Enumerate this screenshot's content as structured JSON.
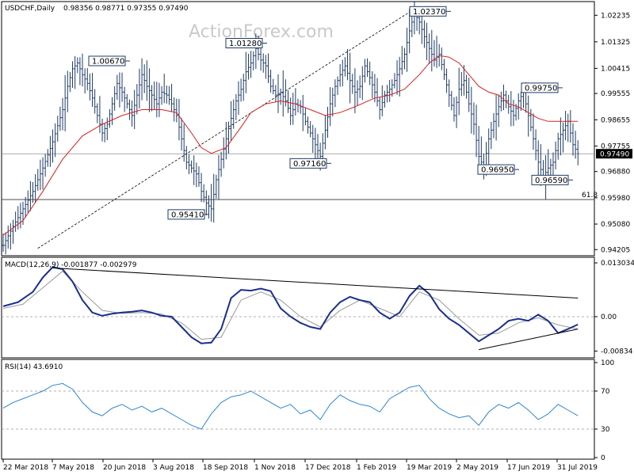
{
  "chart_data": {
    "type": "line",
    "title": "USDCHF,Daily",
    "ohlc_text": "0.98356 0.98771 0.97355 0.97490",
    "watermark": "ActionForex.com",
    "x_tick_labels": [
      "22 Mar 2018",
      "7 May 2018",
      "20 Jun 2018",
      "3 Aug 2018",
      "18 Sep 2018",
      "1 Nov 2018",
      "17 Dec 2018",
      "1 Feb 2019",
      "19 Mar 2019",
      "2 May 2019",
      "17 Jun 2019",
      "31 Jul 2019"
    ],
    "price_panel": {
      "y_ticks": [
        "1.02235",
        "1.01325",
        "1.00415",
        "0.99555",
        "0.98655",
        "0.97755",
        "0.96880",
        "0.95980",
        "0.95080",
        "0.94205"
      ],
      "ylim": [
        0.9405,
        1.0265
      ],
      "current_price_label": "0.97490",
      "current_price": 0.9749,
      "fib_level": 0.9592,
      "fib_label": "61.8",
      "annotations": [
        {
          "text": "1.00670",
          "price": 1.0067
        },
        {
          "text": "1.01280",
          "price": 1.0128
        },
        {
          "text": "1.02370",
          "price": 1.0237
        },
        {
          "text": "0.95410",
          "price": 0.9541
        },
        {
          "text": "0.97160",
          "price": 0.9716
        },
        {
          "text": "0.99750",
          "price": 0.9975
        },
        {
          "text": "0.96950",
          "price": 0.9695
        },
        {
          "text": "0.96590",
          "price": 0.9659
        }
      ],
      "price_path": [
        [
          0,
          0.9435
        ],
        [
          4,
          0.95
        ],
        [
          8,
          0.956
        ],
        [
          12,
          0.962
        ],
        [
          16,
          0.97
        ],
        [
          20,
          0.979
        ],
        [
          24,
          0.99
        ],
        [
          26,
          0.998
        ],
        [
          28,
          1.004
        ],
        [
          30,
          1.006
        ],
        [
          32,
          1.002
        ],
        [
          34,
          0.999
        ],
        [
          36,
          0.994
        ],
        [
          38,
          0.988
        ],
        [
          40,
          0.982
        ],
        [
          42,
          0.985
        ],
        [
          44,
          0.992
        ],
        [
          46,
          0.999
        ],
        [
          48,
          0.996
        ],
        [
          50,
          0.992
        ],
        [
          52,
          0.988
        ],
        [
          54,
          0.995
        ],
        [
          56,
          1.002
        ],
        [
          58,
          0.998
        ],
        [
          60,
          0.995
        ],
        [
          62,
          0.992
        ],
        [
          64,
          0.996
        ],
        [
          66,
          0.995
        ],
        [
          68,
          0.992
        ],
        [
          70,
          0.988
        ],
        [
          72,
          0.98
        ],
        [
          74,
          0.972
        ],
        [
          76,
          0.97
        ],
        [
          78,
          0.968
        ],
        [
          80,
          0.962
        ],
        [
          82,
          0.958
        ],
        [
          84,
          0.956
        ],
        [
          86,
          0.966
        ],
        [
          88,
          0.973
        ],
        [
          90,
          0.98
        ],
        [
          92,
          0.987
        ],
        [
          94,
          0.993
        ],
        [
          96,
          0.997
        ],
        [
          98,
          1.003
        ],
        [
          100,
          1.006
        ],
        [
          102,
          1.011
        ],
        [
          104,
          1.007
        ],
        [
          106,
          1.005
        ],
        [
          108,
          0.998
        ],
        [
          110,
          0.995
        ],
        [
          112,
          0.996
        ],
        [
          114,
          0.993
        ],
        [
          116,
          0.988
        ],
        [
          118,
          0.992
        ],
        [
          120,
          0.991
        ],
        [
          122,
          0.986
        ],
        [
          124,
          0.982
        ],
        [
          126,
          0.978
        ],
        [
          128,
          0.974
        ],
        [
          130,
          0.983
        ],
        [
          132,
          0.992
        ],
        [
          134,
          0.998
        ],
        [
          136,
          1.002
        ],
        [
          138,
          1.005
        ],
        [
          140,
          1.0
        ],
        [
          142,
          0.996
        ],
        [
          144,
          0.998
        ],
        [
          146,
          1.005
        ],
        [
          148,
          1.001
        ],
        [
          150,
          0.996
        ],
        [
          152,
          0.99
        ],
        [
          154,
          0.995
        ],
        [
          156,
          0.997
        ],
        [
          158,
          1.0
        ],
        [
          160,
          1.004
        ],
        [
          162,
          1.009
        ],
        [
          164,
          1.017
        ],
        [
          166,
          1.023
        ],
        [
          168,
          1.02
        ],
        [
          170,
          1.015
        ],
        [
          172,
          1.011
        ],
        [
          174,
          1.007
        ],
        [
          176,
          1.009
        ],
        [
          178,
          1.002
        ],
        [
          180,
          0.995
        ],
        [
          182,
          0.988
        ],
        [
          184,
          0.997
        ],
        [
          186,
          1.0
        ],
        [
          188,
          0.992
        ],
        [
          190,
          0.985
        ],
        [
          192,
          0.974
        ],
        [
          194,
          0.97
        ],
        [
          196,
          0.98
        ],
        [
          198,
          0.986
        ],
        [
          200,
          0.991
        ],
        [
          202,
          0.995
        ],
        [
          204,
          0.991
        ],
        [
          206,
          0.988
        ],
        [
          208,
          0.993
        ],
        [
          210,
          0.996
        ],
        [
          212,
          0.988
        ],
        [
          214,
          0.98
        ],
        [
          216,
          0.972
        ],
        [
          218,
          0.967
        ],
        [
          220,
          0.97
        ],
        [
          222,
          0.972
        ],
        [
          224,
          0.98
        ],
        [
          226,
          0.983
        ],
        [
          228,
          0.986
        ],
        [
          230,
          0.978
        ],
        [
          232,
          0.9749
        ]
      ],
      "ma_path": [
        [
          0,
          0.947
        ],
        [
          8,
          0.952
        ],
        [
          16,
          0.962
        ],
        [
          24,
          0.973
        ],
        [
          32,
          0.981
        ],
        [
          40,
          0.985
        ],
        [
          48,
          0.988
        ],
        [
          56,
          0.99
        ],
        [
          64,
          0.99
        ],
        [
          70,
          0.989
        ],
        [
          76,
          0.982
        ],
        [
          80,
          0.977
        ],
        [
          84,
          0.975
        ],
        [
          90,
          0.977
        ],
        [
          96,
          0.984
        ],
        [
          100,
          0.989
        ],
        [
          106,
          0.992
        ],
        [
          112,
          0.993
        ],
        [
          118,
          0.992
        ],
        [
          124,
          0.99
        ],
        [
          130,
          0.988
        ],
        [
          136,
          0.989
        ],
        [
          142,
          0.991
        ],
        [
          150,
          0.994
        ],
        [
          156,
          0.995
        ],
        [
          162,
          0.997
        ],
        [
          168,
          1.002
        ],
        [
          172,
          1.006
        ],
        [
          176,
          1.0085
        ],
        [
          180,
          1.008
        ],
        [
          184,
          1.006
        ],
        [
          188,
          1.002
        ],
        [
          192,
          0.998
        ],
        [
          196,
          0.996
        ],
        [
          200,
          0.995
        ],
        [
          204,
          0.992
        ],
        [
          208,
          0.991
        ],
        [
          212,
          0.989
        ],
        [
          216,
          0.987
        ],
        [
          220,
          0.986
        ],
        [
          224,
          0.986
        ],
        [
          228,
          0.986
        ],
        [
          232,
          0.986
        ]
      ],
      "trendline": [
        [
          14,
          0.9425
        ],
        [
          166,
          1.0245
        ]
      ]
    },
    "macd_panel": {
      "label": "MACD(12,26,9) -0.001877 -0.002979",
      "y_ticks": [
        "0.013034",
        "0.00",
        "-0.00834"
      ],
      "ylim": [
        -0.0096,
        0.014
      ],
      "macd_path": [
        [
          0,
          0.0025
        ],
        [
          6,
          0.0035
        ],
        [
          12,
          0.006
        ],
        [
          16,
          0.0095
        ],
        [
          20,
          0.012
        ],
        [
          24,
          0.0115
        ],
        [
          28,
          0.0085
        ],
        [
          32,
          0.004
        ],
        [
          36,
          0.001
        ],
        [
          40,
          0.0002
        ],
        [
          44,
          0.0007
        ],
        [
          48,
          0.001
        ],
        [
          52,
          0.0012
        ],
        [
          56,
          0.0015
        ],
        [
          60,
          0.001
        ],
        [
          64,
          0.0002
        ],
        [
          68,
          0.0
        ],
        [
          72,
          -0.0025
        ],
        [
          76,
          -0.005
        ],
        [
          80,
          -0.0065
        ],
        [
          84,
          -0.0063
        ],
        [
          88,
          -0.003
        ],
        [
          92,
          0.0045
        ],
        [
          96,
          0.0065
        ],
        [
          100,
          0.0063
        ],
        [
          104,
          0.0068
        ],
        [
          108,
          0.0062
        ],
        [
          112,
          0.002
        ],
        [
          116,
          0.0
        ],
        [
          120,
          -0.0015
        ],
        [
          124,
          -0.0025
        ],
        [
          128,
          -0.003
        ],
        [
          132,
          0.001
        ],
        [
          136,
          0.0035
        ],
        [
          140,
          0.0048
        ],
        [
          144,
          0.004
        ],
        [
          148,
          0.0035
        ],
        [
          152,
          0.001
        ],
        [
          156,
          -0.0005
        ],
        [
          160,
          0.001
        ],
        [
          164,
          0.005
        ],
        [
          168,
          0.0075
        ],
        [
          172,
          0.0055
        ],
        [
          176,
          0.0018
        ],
        [
          180,
          -0.0005
        ],
        [
          184,
          -0.002
        ],
        [
          188,
          -0.004
        ],
        [
          192,
          -0.006
        ],
        [
          196,
          -0.0045
        ],
        [
          200,
          -0.003
        ],
        [
          204,
          -0.001
        ],
        [
          208,
          -0.0005
        ],
        [
          212,
          -0.001
        ],
        [
          216,
          0.0005
        ],
        [
          220,
          -0.001
        ],
        [
          224,
          -0.004
        ],
        [
          228,
          -0.003
        ],
        [
          232,
          -0.0019
        ]
      ],
      "signal_path": [
        [
          0,
          0.002
        ],
        [
          8,
          0.003
        ],
        [
          16,
          0.007
        ],
        [
          24,
          0.011
        ],
        [
          32,
          0.006
        ],
        [
          40,
          0.0015
        ],
        [
          48,
          0.0008
        ],
        [
          56,
          0.001
        ],
        [
          64,
          0.0006
        ],
        [
          72,
          -0.0015
        ],
        [
          80,
          -0.0055
        ],
        [
          88,
          -0.005
        ],
        [
          96,
          0.004
        ],
        [
          104,
          0.006
        ],
        [
          112,
          0.004
        ],
        [
          120,
          0.0
        ],
        [
          128,
          -0.0025
        ],
        [
          136,
          0.0015
        ],
        [
          144,
          0.004
        ],
        [
          152,
          0.002
        ],
        [
          160,
          0.0
        ],
        [
          168,
          0.006
        ],
        [
          176,
          0.004
        ],
        [
          184,
          -0.0005
        ],
        [
          192,
          -0.0045
        ],
        [
          200,
          -0.004
        ],
        [
          208,
          -0.0015
        ],
        [
          216,
          -0.0003
        ],
        [
          224,
          -0.002
        ],
        [
          232,
          -0.003
        ]
      ],
      "trendlines": [
        [
          [
            20,
            0.0118
          ],
          [
            232,
            0.0045
          ]
        ],
        [
          [
            192,
            -0.008
          ],
          [
            232,
            -0.003
          ]
        ]
      ]
    },
    "rsi_panel": {
      "label": "RSI(14) 43.6910",
      "y_ticks": [
        "100",
        "70",
        "30",
        "0"
      ],
      "ylim": [
        0,
        100
      ],
      "levels": [
        70,
        30
      ],
      "rsi_path": [
        [
          0,
          52
        ],
        [
          4,
          58
        ],
        [
          8,
          62
        ],
        [
          12,
          66
        ],
        [
          16,
          70
        ],
        [
          20,
          76
        ],
        [
          24,
          78
        ],
        [
          28,
          72
        ],
        [
          32,
          58
        ],
        [
          36,
          48
        ],
        [
          40,
          44
        ],
        [
          44,
          52
        ],
        [
          48,
          56
        ],
        [
          52,
          50
        ],
        [
          56,
          54
        ],
        [
          60,
          48
        ],
        [
          64,
          52
        ],
        [
          68,
          46
        ],
        [
          72,
          40
        ],
        [
          76,
          34
        ],
        [
          80,
          30
        ],
        [
          84,
          46
        ],
        [
          88,
          58
        ],
        [
          92,
          64
        ],
        [
          96,
          66
        ],
        [
          100,
          70
        ],
        [
          104,
          64
        ],
        [
          108,
          58
        ],
        [
          112,
          52
        ],
        [
          116,
          56
        ],
        [
          120,
          46
        ],
        [
          124,
          50
        ],
        [
          128,
          40
        ],
        [
          132,
          56
        ],
        [
          136,
          66
        ],
        [
          140,
          60
        ],
        [
          144,
          56
        ],
        [
          148,
          54
        ],
        [
          152,
          48
        ],
        [
          156,
          62
        ],
        [
          160,
          68
        ],
        [
          164,
          74
        ],
        [
          168,
          76
        ],
        [
          172,
          62
        ],
        [
          176,
          52
        ],
        [
          180,
          46
        ],
        [
          184,
          42
        ],
        [
          188,
          44
        ],
        [
          192,
          34
        ],
        [
          196,
          48
        ],
        [
          200,
          56
        ],
        [
          204,
          52
        ],
        [
          208,
          58
        ],
        [
          212,
          50
        ],
        [
          216,
          40
        ],
        [
          220,
          46
        ],
        [
          224,
          56
        ],
        [
          228,
          50
        ],
        [
          232,
          44
        ]
      ]
    }
  }
}
